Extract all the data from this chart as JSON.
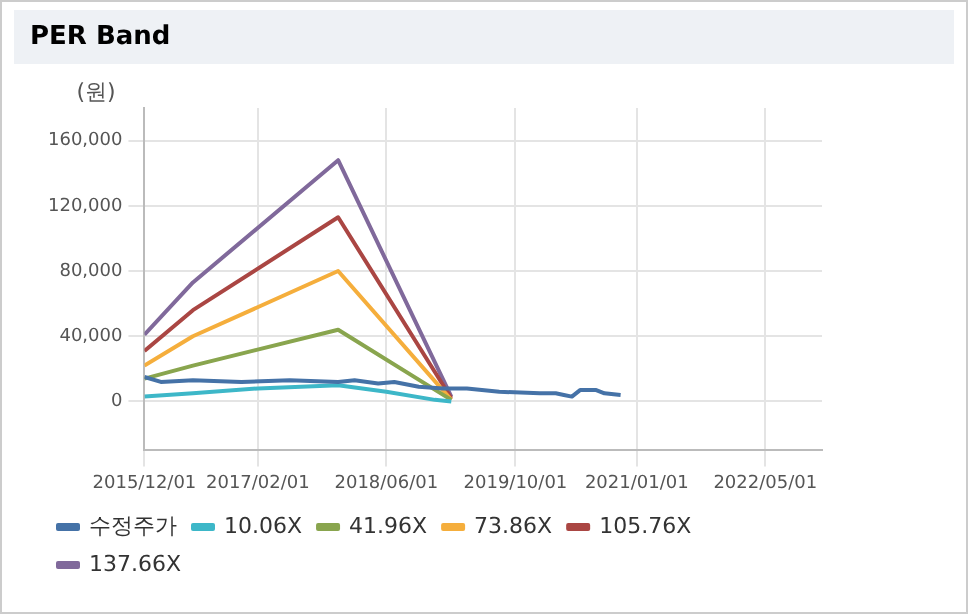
{
  "chart_data": {
    "type": "line",
    "title": "PER Band",
    "ylabel": "(원)",
    "xlim": [
      "2015-12-01",
      "2022-12-01"
    ],
    "xticks": [
      {
        "value": "2015-12-01",
        "label": "2015/12/01"
      },
      {
        "value": "2017-02-01",
        "label": "2017/02/01"
      },
      {
        "value": "2018-06-01",
        "label": "2018/06/01"
      },
      {
        "value": "2019-10-01",
        "label": "2019/10/01"
      },
      {
        "value": "2021-01-01",
        "label": "2021/01/01"
      },
      {
        "value": "2022-05-01",
        "label": "2022/05/01"
      }
    ],
    "ylim": [
      -30000,
      180000
    ],
    "yticks": [
      {
        "value": 0,
        "label": "0"
      },
      {
        "value": 40000,
        "label": "40,000"
      },
      {
        "value": 80000,
        "label": "80,000"
      },
      {
        "value": 120000,
        "label": "120,000"
      },
      {
        "value": 160000,
        "label": "160,000"
      }
    ],
    "grid": true,
    "legend": "bottom",
    "marker": "none",
    "line_style": "solid",
    "series": [
      {
        "name": "수정주가",
        "color": "#4572a7",
        "x": [
          "2015-12-01",
          "2016-02-01",
          "2016-06-01",
          "2016-12-01",
          "2017-06-01",
          "2017-12-01",
          "2018-02-01",
          "2018-05-01",
          "2018-07-01",
          "2018-10-01",
          "2019-01-01",
          "2019-04-01",
          "2019-08-01",
          "2020-01-01",
          "2020-03-01",
          "2020-04-01",
          "2020-05-01",
          "2020-06-01",
          "2020-08-01",
          "2020-09-01",
          "2020-11-01"
        ],
        "values": [
          15000,
          12000,
          13000,
          12000,
          13000,
          12000,
          13000,
          11000,
          12000,
          9000,
          8000,
          8000,
          6000,
          5000,
          5000,
          4000,
          3000,
          7000,
          7000,
          5000,
          4000
        ]
      },
      {
        "name": "10.06X",
        "color": "#3db7c8",
        "x": [
          "2015-12-01",
          "2016-06-01",
          "2017-02-01",
          "2017-12-01",
          "2018-06-01",
          "2018-12-01",
          "2019-02-01"
        ],
        "values": [
          3000,
          5000,
          8000,
          10000,
          6000,
          1000,
          0
        ]
      },
      {
        "name": "41.96X",
        "color": "#89a54e",
        "x": [
          "2015-12-01",
          "2016-06-01",
          "2017-12-01",
          "2019-02-01"
        ],
        "values": [
          14000,
          22000,
          44000,
          1000
        ]
      },
      {
        "name": "73.86X",
        "color": "#f5ae3c",
        "x": [
          "2015-12-01",
          "2016-06-01",
          "2017-12-01",
          "2019-02-01"
        ],
        "values": [
          22000,
          40000,
          80000,
          1000
        ]
      },
      {
        "name": "105.76X",
        "color": "#aa4643",
        "x": [
          "2015-12-01",
          "2016-06-01",
          "2017-12-01",
          "2019-02-01"
        ],
        "values": [
          31000,
          56000,
          113000,
          2000
        ]
      },
      {
        "name": "137.66X",
        "color": "#80699b",
        "x": [
          "2015-12-01",
          "2016-06-01",
          "2017-12-01",
          "2019-02-01"
        ],
        "values": [
          41000,
          73000,
          148000,
          3000
        ]
      }
    ]
  }
}
